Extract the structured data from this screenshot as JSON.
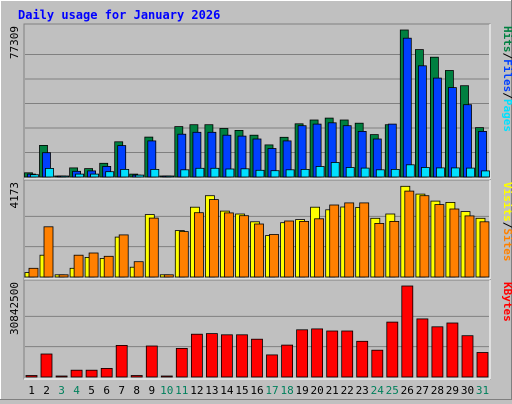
{
  "title": "Daily usage for January 2026",
  "colors": {
    "title": "#0000FF",
    "hits": "#008040",
    "files": "#0040FF",
    "pages": "#00E0FF",
    "visits": "#FFFF00",
    "sites": "#FF8000",
    "kbytes": "#FF0000",
    "weekend_day": "#00805C",
    "weekday": "#000000",
    "panel_bg": "#C0C0C0",
    "outline": "#000000"
  },
  "chart_data": [
    {
      "type": "bar",
      "panel": "hits-files-pages",
      "ymax_label": "77309",
      "ylim": [
        0,
        77309
      ],
      "legend": [
        {
          "text": "Hits",
          "color_key": "hits"
        },
        {
          "text": "Files",
          "color_key": "files"
        },
        {
          "text": "Pages",
          "color_key": "pages"
        }
      ],
      "legend_separator": "/",
      "x": [
        "1",
        "2",
        "3",
        "4",
        "5",
        "6",
        "7",
        "8",
        "9",
        "10",
        "11",
        "12",
        "13",
        "14",
        "15",
        "16",
        "17",
        "18",
        "19",
        "20",
        "21",
        "22",
        "23",
        "24",
        "25",
        "26",
        "27",
        "28",
        "29",
        "30",
        "31"
      ],
      "series": [
        {
          "name": "Hits",
          "color_key": "hits",
          "values": [
            2200,
            16600,
            500,
            4800,
            4400,
            7200,
            18500,
            1500,
            21000,
            500,
            26500,
            27500,
            27500,
            25500,
            24500,
            22000,
            16900,
            20900,
            28000,
            30000,
            31000,
            30000,
            28300,
            22300,
            27500,
            77300,
            67000,
            63000,
            56000,
            48000,
            26000
          ]
        },
        {
          "name": "Files",
          "color_key": "files",
          "values": [
            1500,
            12800,
            300,
            3000,
            3200,
            5600,
            16500,
            1000,
            19000,
            300,
            22500,
            23500,
            23500,
            22000,
            21500,
            20000,
            15000,
            19000,
            27000,
            27800,
            28500,
            27000,
            24000,
            20000,
            27800,
            73000,
            58500,
            52000,
            47000,
            38000,
            24000
          ]
        },
        {
          "name": "Pages",
          "color_key": "pages",
          "values": [
            1200,
            4500,
            300,
            1500,
            1500,
            2800,
            4000,
            1000,
            4000,
            300,
            3800,
            4600,
            4600,
            4200,
            4300,
            3500,
            3300,
            3800,
            4000,
            5500,
            7600,
            5000,
            4700,
            3800,
            4000,
            6400,
            5000,
            4800,
            4800,
            4700,
            3200
          ]
        }
      ]
    },
    {
      "type": "bar",
      "panel": "visits-sites",
      "ymax_label": "4173",
      "ylim": [
        0,
        4173
      ],
      "legend": [
        {
          "text": "Visits",
          "color_key": "visits"
        },
        {
          "text": "Sites",
          "color_key": "sites"
        }
      ],
      "legend_separator": "/",
      "x": [
        "1",
        "2",
        "3",
        "4",
        "5",
        "6",
        "7",
        "8",
        "9",
        "10",
        "11",
        "12",
        "13",
        "14",
        "15",
        "16",
        "17",
        "18",
        "19",
        "20",
        "21",
        "22",
        "23",
        "24",
        "25",
        "26",
        "27",
        "28",
        "29",
        "30",
        "31"
      ],
      "series": [
        {
          "name": "Visits",
          "color_key": "visits",
          "values": [
            200,
            1000,
            100,
            400,
            900,
            850,
            1830,
            450,
            2860,
            100,
            2130,
            3200,
            3730,
            3020,
            2890,
            2530,
            1900,
            2490,
            2630,
            3200,
            3080,
            3210,
            3190,
            2690,
            2890,
            4160,
            3800,
            3480,
            3420,
            3000,
            2690
          ]
        },
        {
          "name": "Sites",
          "color_key": "sites",
          "values": [
            400,
            2300,
            100,
            1000,
            1100,
            950,
            1930,
            700,
            2700,
            100,
            2080,
            2950,
            3550,
            2940,
            2810,
            2430,
            1950,
            2570,
            2550,
            2670,
            3300,
            3400,
            3400,
            2460,
            2550,
            3940,
            3730,
            3320,
            3120,
            2800,
            2530
          ]
        }
      ]
    },
    {
      "type": "bar",
      "panel": "kbytes",
      "ymax_label": "30842500",
      "ylim": [
        0,
        30842500
      ],
      "legend": [
        {
          "text": "KBytes",
          "color_key": "kbytes"
        }
      ],
      "x": [
        "1",
        "2",
        "3",
        "4",
        "5",
        "6",
        "7",
        "8",
        "9",
        "10",
        "11",
        "12",
        "13",
        "14",
        "15",
        "16",
        "17",
        "18",
        "19",
        "20",
        "21",
        "22",
        "23",
        "24",
        "25",
        "26",
        "27",
        "28",
        "29",
        "30",
        "31"
      ],
      "series": [
        {
          "name": "KBytes",
          "color_key": "kbytes",
          "values": [
            500000,
            7800000,
            300000,
            2300000,
            2300000,
            2900000,
            10700000,
            500000,
            10500000,
            300000,
            9700000,
            14500000,
            14700000,
            14300000,
            14300000,
            12800000,
            7500000,
            10800000,
            16000000,
            16300000,
            15600000,
            15600000,
            12100000,
            9100000,
            18600000,
            30842500,
            19700000,
            17000000,
            18300000,
            14000000,
            8300000
          ]
        }
      ]
    }
  ],
  "x_axis": {
    "days": [
      "1",
      "2",
      "3",
      "4",
      "5",
      "6",
      "7",
      "8",
      "9",
      "10",
      "11",
      "12",
      "13",
      "14",
      "15",
      "16",
      "17",
      "18",
      "19",
      "20",
      "21",
      "22",
      "23",
      "24",
      "25",
      "26",
      "27",
      "28",
      "29",
      "30",
      "31"
    ],
    "weekend_days": [
      "3",
      "4",
      "10",
      "11",
      "17",
      "18",
      "24",
      "25",
      "31"
    ]
  }
}
